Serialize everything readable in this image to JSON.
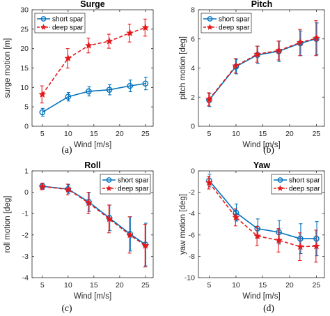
{
  "chart_data": [
    {
      "type": "line",
      "title": "Surge",
      "xlabel": "Wind [m/s]",
      "ylabel": "surge motion [m]",
      "caption": "(a)",
      "x": [
        5,
        10,
        14,
        18,
        22,
        25
      ],
      "xticks": [
        5,
        10,
        15,
        20,
        25
      ],
      "xlim": [
        3,
        26.5
      ],
      "ylim": [
        0,
        30
      ],
      "yticks": [
        0,
        5,
        10,
        15,
        20,
        25,
        30
      ],
      "grid": false,
      "legend_position": "top-left",
      "series": [
        {
          "name": "short spar",
          "color": "#0072BD",
          "line_style": "solid",
          "marker": "circle",
          "values": [
            3.6,
            7.6,
            9.0,
            9.4,
            10.4,
            11.0
          ],
          "errors": [
            1.0,
            1.1,
            1.2,
            1.3,
            1.5,
            1.6
          ]
        },
        {
          "name": "deep spar",
          "color": "#E31A1C",
          "line_style": "dashed",
          "marker": "star",
          "values": [
            8.2,
            17.5,
            20.8,
            21.9,
            24.0,
            25.4
          ],
          "errors": [
            2.2,
            2.5,
            1.9,
            1.8,
            2.3,
            2.2
          ]
        }
      ]
    },
    {
      "type": "line",
      "title": "Pitch",
      "xlabel": "Wind [m/s]",
      "ylabel": "pitch motion [deg]",
      "caption": "(b)",
      "x": [
        5,
        10,
        14,
        18,
        22,
        25
      ],
      "xticks": [
        5,
        10,
        15,
        20,
        25
      ],
      "xlim": [
        3,
        26.5
      ],
      "ylim": [
        0,
        8
      ],
      "yticks": [
        0,
        2,
        4,
        6,
        8
      ],
      "grid": false,
      "legend_position": "top-left",
      "series": [
        {
          "name": "short spar",
          "color": "#0072BD",
          "line_style": "solid",
          "marker": "circle",
          "values": [
            1.8,
            4.1,
            4.9,
            5.15,
            5.7,
            6.0
          ],
          "errors": [
            0.45,
            0.5,
            0.6,
            0.7,
            0.85,
            1.1
          ]
        },
        {
          "name": "deep spar",
          "color": "#E31A1C",
          "line_style": "dashed",
          "marker": "star",
          "values": [
            1.85,
            4.15,
            4.95,
            5.2,
            5.75,
            6.05
          ],
          "errors": [
            0.45,
            0.5,
            0.55,
            0.65,
            0.9,
            1.2
          ]
        }
      ]
    },
    {
      "type": "line",
      "title": "Roll",
      "xlabel": "Wind [m/s]",
      "ylabel": "roll motion [deg]",
      "caption": "(c)",
      "x": [
        5,
        10,
        14,
        18,
        22,
        25
      ],
      "xticks": [
        5,
        10,
        15,
        20,
        25
      ],
      "xlim": [
        3,
        26.5
      ],
      "ylim": [
        -4,
        1
      ],
      "yticks": [
        -4,
        -3,
        -2,
        -1,
        0,
        1
      ],
      "grid": false,
      "legend_position": "top-right",
      "series": [
        {
          "name": "short spar",
          "color": "#0072BD",
          "line_style": "solid",
          "marker": "circle",
          "values": [
            0.28,
            0.15,
            -0.45,
            -1.2,
            -1.95,
            -2.45
          ],
          "errors": [
            0.15,
            0.2,
            0.45,
            0.6,
            0.8,
            1.0
          ]
        },
        {
          "name": "deep spar",
          "color": "#E31A1C",
          "line_style": "dashed",
          "marker": "star",
          "values": [
            0.27,
            0.13,
            -0.5,
            -1.25,
            -2.0,
            -2.5
          ],
          "errors": [
            0.15,
            0.25,
            0.5,
            0.65,
            0.85,
            1.0
          ]
        }
      ]
    },
    {
      "type": "line",
      "title": "Yaw",
      "xlabel": "Wind [m/s]",
      "ylabel": "yaw motion [deg]",
      "caption": "(d)",
      "x": [
        5,
        10,
        14,
        18,
        22,
        25
      ],
      "xticks": [
        5,
        10,
        15,
        20,
        25
      ],
      "xlim": [
        3,
        26.5
      ],
      "ylim": [
        -10,
        0
      ],
      "yticks": [
        -10,
        -8,
        -6,
        -4,
        -2,
        0
      ],
      "grid": false,
      "legend_position": "top-right",
      "series": [
        {
          "name": "short spar",
          "color": "#0072BD",
          "line_style": "solid",
          "marker": "circle",
          "values": [
            -0.9,
            -3.9,
            -5.4,
            -5.75,
            -6.35,
            -6.35
          ],
          "errors": [
            0.6,
            0.8,
            0.9,
            1.1,
            1.4,
            1.6
          ]
        },
        {
          "name": "deep spar",
          "color": "#E31A1C",
          "line_style": "dashed",
          "marker": "star",
          "values": [
            -1.1,
            -4.35,
            -6.1,
            -6.5,
            -7.1,
            -7.05
          ],
          "errors": [
            0.6,
            0.8,
            0.9,
            1.1,
            1.3,
            1.5
          ]
        }
      ]
    }
  ]
}
